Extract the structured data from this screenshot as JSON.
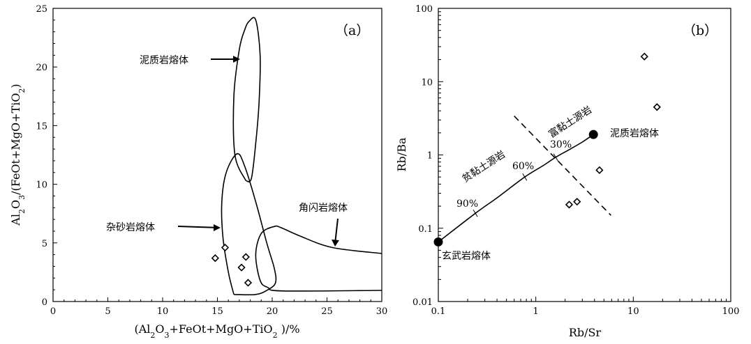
{
  "chart_data": [
    {
      "type": "scatter",
      "panel_label": "（a）",
      "xlabel": "(Al2O3+FeOt+MgO+TiO2 )/%",
      "ylabel": "Al2O3/(FeOt+MgO+TiO2)",
      "xlim": [
        0,
        30
      ],
      "ylim": [
        0,
        25
      ],
      "x_ticks": [
        "0",
        "5",
        "10",
        "15",
        "20",
        "25",
        "30"
      ],
      "y_ticks": [
        "0",
        "5",
        "10",
        "15",
        "20",
        "25"
      ],
      "series": [
        {
          "points": [
            [
              14.8,
              3.7
            ],
            [
              15.7,
              4.6
            ],
            [
              17.2,
              2.9
            ],
            [
              17.6,
              3.8
            ],
            [
              17.8,
              1.6
            ]
          ]
        }
      ],
      "regions": [
        {
          "label": "泥质岩熔体",
          "points": [
            [
              17.6,
              10.3
            ],
            [
              16.6,
              12.5
            ],
            [
              16.5,
              17.5
            ],
            [
              17.0,
              21.5
            ],
            [
              17.5,
              23.2
            ],
            [
              17.9,
              23.9
            ],
            [
              18.5,
              24.0
            ],
            [
              18.9,
              21.0
            ],
            [
              18.8,
              17.0
            ],
            [
              18.5,
              13.5
            ],
            [
              18.1,
              10.5
            ],
            [
              17.6,
              10.3
            ]
          ]
        },
        {
          "label": "杂砂岩熔体",
          "points": [
            [
              16.5,
              0.6
            ],
            [
              16.0,
              2.5
            ],
            [
              15.5,
              5.5
            ],
            [
              15.4,
              8.5
            ],
            [
              15.8,
              11.0
            ],
            [
              16.8,
              12.6
            ],
            [
              17.5,
              11.5
            ],
            [
              18.5,
              8.5
            ],
            [
              19.5,
              5.0
            ],
            [
              20.2,
              2.8
            ],
            [
              20.3,
              1.6
            ],
            [
              19.6,
              1.0
            ],
            [
              18.5,
              0.6
            ],
            [
              16.5,
              0.6
            ]
          ]
        },
        {
          "label": "角闪岩熔体",
          "points": [
            [
              30.0,
              4.1
            ],
            [
              25.5,
              4.6
            ],
            [
              22.5,
              5.6
            ],
            [
              20.8,
              6.3
            ],
            [
              20.2,
              6.4
            ],
            [
              19.0,
              5.8
            ],
            [
              18.5,
              4.0
            ],
            [
              18.9,
              1.8
            ],
            [
              19.6,
              1.2
            ],
            [
              21.0,
              0.9
            ],
            [
              30.0,
              0.95
            ]
          ]
        }
      ]
    },
    {
      "type": "line",
      "panel_label": "（b）",
      "xlabel": "Rb/Sr",
      "ylabel": "Rb/Ba",
      "x_scale": "log",
      "y_scale": "log",
      "xlim": [
        0.1,
        100
      ],
      "ylim": [
        0.01,
        100
      ],
      "x_ticks": [
        "0.1",
        "1",
        "10",
        "100"
      ],
      "y_ticks": [
        "0.01",
        "0.1",
        "1",
        "10",
        "100"
      ],
      "mixing_curve": [
        [
          0.1,
          0.065
        ],
        [
          0.24,
          0.16
        ],
        [
          0.4,
          0.26
        ],
        [
          0.77,
          0.5
        ],
        [
          1.2,
          0.72
        ],
        [
          1.6,
          0.93
        ],
        [
          2.3,
          1.22
        ],
        [
          3.0,
          1.5
        ],
        [
          3.9,
          1.9
        ]
      ],
      "curve_ticks": [
        {
          "label": "90%",
          "point": [
            0.24,
            0.16
          ]
        },
        {
          "label": "60%",
          "point": [
            0.77,
            0.5
          ]
        },
        {
          "label": "30%",
          "point": [
            1.6,
            0.93
          ]
        }
      ],
      "end_members": [
        {
          "label": "玄武岩熔体",
          "point": [
            0.1,
            0.065
          ]
        },
        {
          "label": "泥质岩熔体",
          "point": [
            3.9,
            1.9
          ]
        }
      ],
      "divider": [
        [
          0.6,
          3.4
        ],
        [
          5.9,
          0.15
        ]
      ],
      "region_labels": [
        "富黏土源岩",
        "贫黏土源岩"
      ],
      "series": [
        {
          "points": [
            [
              2.2,
              0.21
            ],
            [
              2.65,
              0.23
            ],
            [
              4.5,
              0.62
            ],
            [
              13.0,
              22.0
            ],
            [
              17.5,
              4.5
            ]
          ]
        }
      ]
    }
  ]
}
